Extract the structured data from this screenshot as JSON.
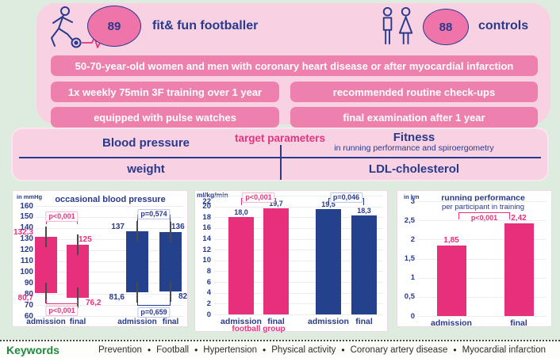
{
  "header": {
    "footballers": {
      "count": "89",
      "label": "fit& fun footballer"
    },
    "controls": {
      "count": "88",
      "label": "controls"
    }
  },
  "banners": {
    "row1": "50-70-year-old women and men with coronary heart disease or after myocardial infarction",
    "row2_left": "1x weekly 75min 3F training over 1 year",
    "row2_right": "recommended routine check-ups",
    "row3_left": "equipped with pulse watches",
    "row3_right": "final examination after 1 year"
  },
  "target_parameters": {
    "title": "target parameters",
    "top_left": "Blood pressure",
    "top_right": "Fitness",
    "top_right_sub": "in running performance and spiroergometry",
    "bottom_left": "weight",
    "bottom_right": "LDL-cholesterol"
  },
  "colors": {
    "navy": "#283a8c",
    "pink": "#e6337e",
    "bar_pink": "#e6307c",
    "bar_blue": "#24418e",
    "banner_pink": "#ee80ad",
    "box_pink": "#f8d2e2",
    "mint_bg": "#deecdf",
    "circle_pink": "#ef74a9",
    "green": "#1f8a3e",
    "pink_label_border": "#f4b8d0",
    "blue_label_border": "#bcc6ea"
  },
  "chart_data": [
    {
      "type": "bar",
      "variant": "floating-range",
      "title": "occasional blood pressure",
      "ylabel": "in mmHg",
      "ylim": [
        60,
        160
      ],
      "yticks": [
        160,
        150,
        140,
        130,
        120,
        110,
        100,
        90,
        80,
        70,
        60
      ],
      "grid": true,
      "bars": [
        {
          "x": "admission",
          "group": "football group",
          "low": 80.7,
          "high": 132.3,
          "low_label": "80,7",
          "high_label": "132,3",
          "label_side": "left",
          "color": "pink"
        },
        {
          "x": "final",
          "group": "football group",
          "low": 76.2,
          "high": 125.0,
          "low_label": "76,2",
          "high_label": "125",
          "label_side": "right",
          "color": "pink"
        },
        {
          "x": "admission",
          "group": "controls",
          "low": 81.6,
          "high": 137.0,
          "low_label": "81,6",
          "high_label": "137",
          "label_side": "left",
          "color": "blue"
        },
        {
          "x": "final",
          "group": "controls",
          "low": 82.0,
          "high": 136.0,
          "low_label": "82",
          "high_label": "136",
          "label_side": "right",
          "color": "blue"
        }
      ],
      "significance": [
        {
          "bars": [
            0,
            1
          ],
          "position": "top",
          "label": "p<0,001",
          "color": "pink"
        },
        {
          "bars": [
            2,
            3
          ],
          "position": "top",
          "label": "p=0,574",
          "color": "blue"
        },
        {
          "bars": [
            0,
            1
          ],
          "position": "bottom",
          "label": "p<0,001",
          "color": "pink"
        },
        {
          "bars": [
            2,
            3
          ],
          "position": "bottom",
          "label": "p=0,659",
          "color": "blue"
        }
      ]
    },
    {
      "type": "bar",
      "variant": "column",
      "title": "",
      "ylabel": "ml/kg/min",
      "ylim": [
        0,
        22
      ],
      "yticks": [
        22,
        20,
        18,
        16,
        14,
        12,
        10,
        8,
        6,
        4,
        2,
        0
      ],
      "grid": true,
      "group_label": "football group",
      "bars": [
        {
          "x": "admission",
          "group": "football group",
          "value": 18.0,
          "value_label": "18,0",
          "color": "pink"
        },
        {
          "x": "final",
          "group": "football group",
          "value": 19.7,
          "value_label": "19,7",
          "color": "pink"
        },
        {
          "x": "admission",
          "group": "controls",
          "value": 19.5,
          "value_label": "19,5",
          "color": "blue"
        },
        {
          "x": "final",
          "group": "controls",
          "value": 18.3,
          "value_label": "18,3",
          "color": "blue"
        }
      ],
      "significance": [
        {
          "bars": [
            0,
            1
          ],
          "position": "top",
          "label": "p<0,001",
          "color": "pink"
        },
        {
          "bars": [
            2,
            3
          ],
          "position": "top",
          "label": "p=0,046",
          "color": "blue"
        }
      ]
    },
    {
      "type": "bar",
      "variant": "column",
      "title": "running performance",
      "subtitle": "per participant in training",
      "ylabel": "in km",
      "ylim": [
        0,
        3
      ],
      "yticks": [
        3,
        2.5,
        2,
        1.5,
        1,
        0.5,
        0
      ],
      "ytick_labels": [
        "3",
        "2,5",
        "2",
        "1,5",
        "1",
        "0,5",
        "0"
      ],
      "grid": true,
      "bars": [
        {
          "x": "admission",
          "value": 1.85,
          "value_label": "1,85",
          "color": "pink"
        },
        {
          "x": "final",
          "value": 2.42,
          "value_label": "2,42",
          "color": "pink"
        }
      ],
      "significance": [
        {
          "bars": [
            0,
            1
          ],
          "position": "top",
          "label": "p<0,001",
          "color": "pink"
        }
      ]
    }
  ],
  "keywords": {
    "label": "Keywords",
    "items": [
      "Prevention",
      "Football",
      "Hypertension",
      "Physical activity",
      "Coronary artery disease",
      "Myocardial infarction"
    ]
  }
}
